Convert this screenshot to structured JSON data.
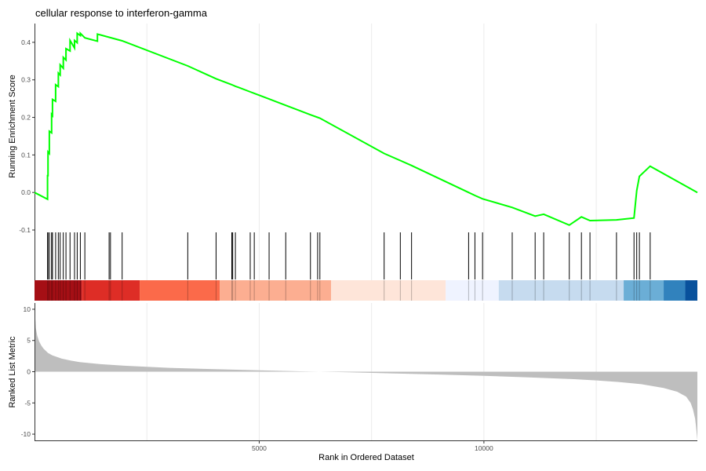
{
  "chart_data": {
    "type": "line",
    "title": "cellular response to interferon-gamma",
    "xlabel": "Rank in Ordered Dataset",
    "x_ticks": [
      5000,
      10000
    ],
    "xlim": [
      0,
      14750
    ],
    "colors": {
      "running_score": "#00ff00",
      "hit_lines": "#000000",
      "metric_fill": "#bebebe",
      "grid": "#ebebeb",
      "heat_band": [
        "#a50f15",
        "#de2d26",
        "#fb6a4a",
        "#fcae91",
        "#fee5d9",
        "#eff3ff",
        "#c6dbef",
        "#6baed6",
        "#3182bd",
        "#08519c"
      ]
    },
    "panels": {
      "running_score": {
        "ylabel": "Running Enrichment Score",
        "ylim": [
          -0.1,
          0.45
        ],
        "y_ticks": [
          -0.1,
          0.0,
          0.1,
          0.2,
          0.3,
          0.4
        ],
        "y_tick_labels": [
          "-0.1",
          "0.0",
          "0.1",
          "0.2",
          "0.3",
          "0.4"
        ],
        "series": [
          {
            "x": [
              0,
              290,
              290,
              300,
              300,
              330,
              330,
              380,
              380,
              400,
              400,
              470,
              470,
              530,
              530,
              570,
              570,
              640,
              640,
              700,
              700,
              790,
              790,
              890,
              890,
              950,
              950,
              1020,
              1020,
              1120,
              1120,
              1400,
              1400,
              1430,
              1430,
              1950,
              1950,
              3410,
              3410,
              4040,
              4040,
              4390,
              4390,
              4410,
              4410,
              4470,
              4470,
              4540,
              4540,
              4800,
              4800,
              4890,
              4890,
              4960,
              4960,
              5220,
              5220,
              5590,
              5590,
              6140,
              6140,
              6300,
              6300,
              6350,
              6350,
              7780,
              7780,
              8140,
              8140,
              8390,
              8390,
              9660,
              9660,
              9800,
              9800,
              9970,
              9970,
              10630,
              10630,
              11140,
              11140,
              11330,
              11330,
              11900,
              11900,
              12170,
              12170,
              12360,
              12360,
              12950,
              12950,
              13340,
              13340,
              13400,
              13400,
              13460,
              13460,
              13700,
              13700,
              14750
            ],
            "y": [
              0.0,
              -0.018,
              0.045,
              0.045,
              0.108,
              0.104,
              0.163,
              0.159,
              0.208,
              0.205,
              0.248,
              0.243,
              0.287,
              0.282,
              0.318,
              0.313,
              0.34,
              0.331,
              0.36,
              0.353,
              0.383,
              0.377,
              0.405,
              0.385,
              0.405,
              0.399,
              0.424,
              0.418,
              0.424,
              0.412,
              0.412,
              0.403,
              0.422,
              0.421,
              0.421,
              0.404,
              0.404,
              0.337,
              0.337,
              0.303,
              0.303,
              0.287,
              0.287,
              0.286,
              0.286,
              0.283,
              0.283,
              0.28,
              0.28,
              0.268,
              0.268,
              0.264,
              0.264,
              0.261,
              0.261,
              0.249,
              0.249,
              0.232,
              0.232,
              0.207,
              0.207,
              0.2,
              0.2,
              0.198,
              0.198,
              0.104,
              0.104,
              0.085,
              0.085,
              0.072,
              0.072,
              0.0,
              0.0,
              -0.008,
              -0.008,
              -0.017,
              -0.017,
              -0.04,
              -0.04,
              -0.063,
              -0.063,
              -0.058,
              -0.058,
              -0.087,
              -0.087,
              -0.065,
              -0.065,
              -0.075,
              -0.075,
              -0.073,
              -0.073,
              -0.068,
              -0.068,
              0.005,
              0.005,
              0.043,
              0.043,
              0.07,
              0.07,
              0.0
            ]
          }
        ]
      },
      "hits": {
        "positions": [
          290,
          300,
          330,
          380,
          400,
          470,
          530,
          570,
          640,
          700,
          790,
          890,
          950,
          1020,
          1120,
          1660,
          1690,
          1950,
          3410,
          4040,
          4390,
          4410,
          4470,
          4800,
          4890,
          5220,
          5590,
          6140,
          6300,
          6350,
          7780,
          8140,
          8390,
          9660,
          9800,
          9970,
          10630,
          11140,
          11330,
          11900,
          12170,
          12360,
          12950,
          13340,
          13400,
          13460,
          13700
        ]
      },
      "ranked_metric": {
        "ylabel": "Ranked List Metric",
        "ylim": [
          -11,
          11
        ],
        "y_ticks": [
          -10,
          -5,
          0,
          5,
          10
        ],
        "y_tick_labels": [
          "-10",
          "-5",
          "0",
          "5",
          "10"
        ],
        "curve": {
          "x": [
            0,
            30,
            60,
            100,
            150,
            200,
            300,
            400,
            600,
            800,
            1000,
            1500,
            2000,
            3000,
            4000,
            5000,
            6000,
            7000,
            8000,
            9000,
            10000,
            11000,
            12000,
            12500,
            13000,
            13500,
            14000,
            14300,
            14500,
            14600,
            14650,
            14700,
            14720,
            14740,
            14750
          ],
          "y": [
            10.5,
            7.0,
            5.8,
            4.9,
            4.2,
            3.7,
            3.0,
            2.6,
            2.1,
            1.8,
            1.55,
            1.2,
            0.95,
            0.62,
            0.4,
            0.22,
            0.05,
            -0.1,
            -0.28,
            -0.45,
            -0.65,
            -0.9,
            -1.2,
            -1.4,
            -1.65,
            -2.0,
            -2.6,
            -3.2,
            -4.0,
            -5.0,
            -6.0,
            -7.5,
            -8.8,
            -10.2,
            -11.0
          ]
        }
      }
    }
  }
}
